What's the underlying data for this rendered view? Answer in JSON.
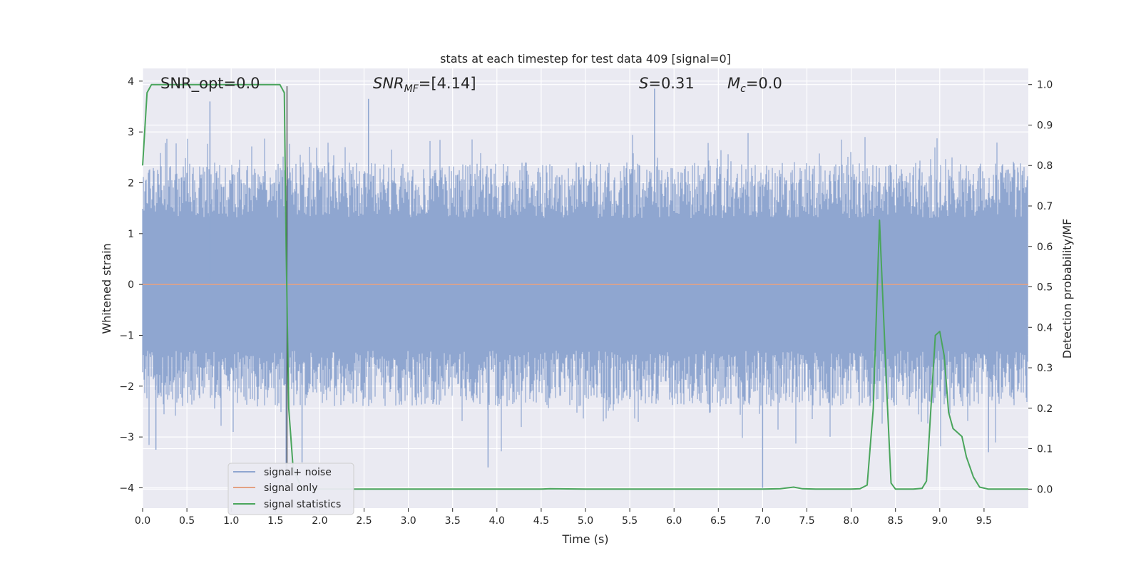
{
  "chart_data": {
    "type": "line",
    "title": "stats at each timestep for test data 409 [signal=0]",
    "xlabel": "Time (s)",
    "ylabel_left": "Whitened strain",
    "ylabel_right": "Detection probability/MF",
    "xlim": [
      0.0,
      10.0
    ],
    "ylim_left": [
      -4.4,
      4.25
    ],
    "ylim_right": [
      -0.047,
      1.04
    ],
    "x_ticks": [
      "0.0",
      "0.5",
      "1.0",
      "1.5",
      "2.0",
      "2.5",
      "3.0",
      "3.5",
      "4.0",
      "4.5",
      "5.0",
      "5.5",
      "6.0",
      "6.5",
      "7.0",
      "7.5",
      "8.0",
      "8.5",
      "9.0",
      "9.5"
    ],
    "y_ticks_left": [
      "4",
      "3",
      "2",
      "1",
      "0",
      "−1",
      "−2",
      "−3",
      "−4"
    ],
    "y_ticks_left_values": [
      4,
      3,
      2,
      1,
      0,
      -1,
      -2,
      -3,
      -4
    ],
    "y_ticks_right": [
      "1.0",
      "0.9",
      "0.8",
      "0.7",
      "0.6",
      "0.5",
      "0.4",
      "0.3",
      "0.2",
      "0.1",
      "0.0"
    ],
    "y_ticks_right_values": [
      1.0,
      0.9,
      0.8,
      0.7,
      0.6,
      0.5,
      0.4,
      0.3,
      0.2,
      0.1,
      0.0
    ],
    "grid": true,
    "annotations": {
      "snr_opt": "SNR_opt=0.0",
      "snr_mf_sym": "SNR",
      "snr_mf_sub": "MF",
      "snr_mf_val": "=[4.14]",
      "s_sym": "S",
      "s_val": "=0.31",
      "mc_sym": "M",
      "mc_sub": "c",
      "mc_val": "=0.0"
    },
    "series": [
      {
        "name": "signal+ noise",
        "color": "#8fa6d0",
        "axis": "left",
        "description_values": "noise band amplitude ~±2.3 with spikes up to 3.9 and down to -4.0",
        "spikes": [
          {
            "x": 0.76,
            "y": 3.6
          },
          {
            "x": 2.55,
            "y": 3.65
          },
          {
            "x": 5.78,
            "y": 3.85
          },
          {
            "x": 0.15,
            "y": -3.25
          },
          {
            "x": 1.62,
            "y": -3.9
          },
          {
            "x": 1.8,
            "y": -3.5
          },
          {
            "x": 3.9,
            "y": -3.6
          },
          {
            "x": 7.0,
            "y": -4.0
          },
          {
            "x": 9.55,
            "y": -3.3
          },
          {
            "x": 9.02,
            "y": -0.75
          }
        ]
      },
      {
        "name": "signal only",
        "color": "#e4a183",
        "axis": "left",
        "x": [
          0.0,
          10.0
        ],
        "y": [
          0.0,
          0.0
        ]
      },
      {
        "name": "signal statistics",
        "color": "#4aa55c",
        "axis": "right",
        "x": [
          0.0,
          0.05,
          0.1,
          0.15,
          0.5,
          1.0,
          1.5,
          1.55,
          1.6,
          1.62,
          1.65,
          1.7,
          1.8,
          2.0,
          3.0,
          4.0,
          4.5,
          4.6,
          5.0,
          6.0,
          7.0,
          7.2,
          7.35,
          7.45,
          7.6,
          8.0,
          8.1,
          8.18,
          8.25,
          8.32,
          8.4,
          8.45,
          8.5,
          8.7,
          8.8,
          8.85,
          8.9,
          8.95,
          9.0,
          9.05,
          9.1,
          9.15,
          9.25,
          9.3,
          9.38,
          9.45,
          9.55,
          10.0
        ],
        "y": [
          0.8,
          0.98,
          1.0,
          1.0,
          1.0,
          1.0,
          1.0,
          1.0,
          0.98,
          0.6,
          0.2,
          0.05,
          0.0,
          0.0,
          0.0,
          0.0,
          0.0,
          0.001,
          0.0,
          0.0,
          0.0,
          0.001,
          0.005,
          0.001,
          0.0,
          0.0,
          0.001,
          0.01,
          0.2,
          0.665,
          0.25,
          0.015,
          0.0,
          0.0,
          0.002,
          0.02,
          0.2,
          0.38,
          0.39,
          0.33,
          0.19,
          0.15,
          0.13,
          0.08,
          0.03,
          0.005,
          0.0,
          0.0
        ]
      }
    ],
    "vertical_marker_x": 1.63,
    "legend_placement": "lower-left"
  },
  "colors": {
    "plot_bg": "#eaeaf2",
    "grid": "#ffffff",
    "noise": "#8fa6d0",
    "signal": "#e4a183",
    "stats": "#4aa55c"
  }
}
